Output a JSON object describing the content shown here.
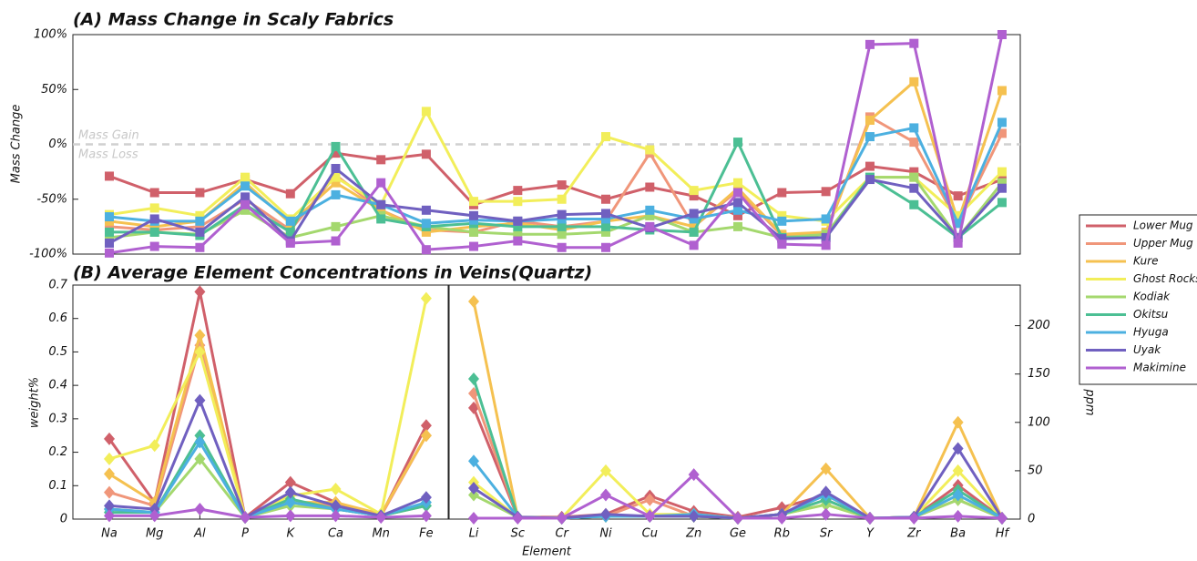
{
  "chart_data": [
    {
      "type": "line",
      "title": "(A) Mass Change in Scaly Fabrics",
      "ylabel": "Mass Change",
      "marker": "square",
      "annotations": [
        "Mass Gain",
        "Mass Loss"
      ],
      "ylim": [
        -100,
        100
      ],
      "yticks": [
        {
          "value": -100,
          "label": "-100%"
        },
        {
          "value": -50,
          "label": "-50%"
        },
        {
          "value": 0,
          "label": "0%"
        },
        {
          "value": 50,
          "label": "50%"
        },
        {
          "value": 100,
          "label": "100%"
        }
      ],
      "series": [
        {
          "name": "Lower Mug",
          "color": "#d0606a",
          "values": [
            -29,
            -44,
            -44,
            -32,
            -45,
            -8,
            -14,
            -9,
            -55,
            -42,
            -37,
            -50,
            -39,
            -47,
            -65,
            -44,
            -43,
            -20,
            -25,
            -47,
            -32
          ]
        },
        {
          "name": "Upper Mug",
          "color": "#f0967a",
          "values": [
            -75,
            -78,
            -75,
            -50,
            -78,
            -28,
            -60,
            -78,
            -80,
            -70,
            -75,
            -70,
            -8,
            -75,
            -42,
            -83,
            -82,
            25,
            2,
            -72,
            10
          ]
        },
        {
          "name": "Kure",
          "color": "#f5c150",
          "values": [
            -70,
            -75,
            -70,
            -35,
            -72,
            -35,
            -60,
            -80,
            -75,
            -72,
            -78,
            -70,
            -65,
            -75,
            -40,
            -82,
            -80,
            22,
            57,
            -70,
            49
          ]
        },
        {
          "name": "Ghost Rocks",
          "color": "#f2ee5a",
          "values": [
            -64,
            -58,
            -65,
            -30,
            -68,
            -30,
            -55,
            30,
            -52,
            -52,
            -50,
            7,
            -5,
            -42,
            -35,
            -65,
            -70,
            -30,
            -30,
            -65,
            -25
          ]
        },
        {
          "name": "Kodiak",
          "color": "#a4d86e",
          "values": [
            -85,
            -80,
            -82,
            -60,
            -85,
            -75,
            -65,
            -75,
            -80,
            -82,
            -82,
            -80,
            -65,
            -80,
            -75,
            -85,
            -82,
            -30,
            -30,
            -85,
            -35
          ]
        },
        {
          "name": "Okitsu",
          "color": "#4cbf94",
          "values": [
            -80,
            -80,
            -83,
            -55,
            -80,
            -2,
            -68,
            -75,
            -72,
            -75,
            -75,
            -75,
            -78,
            -80,
            2,
            -85,
            -85,
            -30,
            -55,
            -85,
            -53
          ]
        },
        {
          "name": "Hyuga",
          "color": "#4cb0e0",
          "values": [
            -66,
            -70,
            -70,
            -38,
            -70,
            -46,
            -55,
            -72,
            -69,
            -70,
            -68,
            -68,
            -60,
            -68,
            -60,
            -70,
            -68,
            7,
            15,
            -72,
            20
          ]
        },
        {
          "name": "Uyak",
          "color": "#7060c0",
          "values": [
            -90,
            -68,
            -80,
            -48,
            -88,
            -22,
            -55,
            -60,
            -65,
            -70,
            -64,
            -63,
            -76,
            -63,
            -53,
            -86,
            -85,
            -32,
            -40,
            -85,
            -40
          ]
        },
        {
          "name": "Makimine",
          "color": "#b060d0",
          "values": [
            -99,
            -93,
            -94,
            -55,
            -90,
            -88,
            -35,
            -96,
            -93,
            -88,
            -94,
            -94,
            -75,
            -92,
            -44,
            -91,
            -92,
            91,
            92,
            -90,
            100
          ]
        }
      ]
    },
    {
      "type": "line",
      "title": "(B) Average Element Concentrations in Veins(Quartz)",
      "ylabel": "weight%",
      "xlabel": "Element",
      "marker": "diamond",
      "categories": [
        "Na",
        "Mg",
        "Al",
        "P",
        "K",
        "Ca",
        "Mn",
        "Fe"
      ],
      "ylim": [
        0,
        0.7
      ],
      "yticks": [
        0,
        0.1,
        0.2,
        0.3,
        0.4,
        0.5,
        0.6,
        0.7
      ],
      "series": [
        {
          "values": [
            0.24,
            0.05,
            0.68,
            0.005,
            0.11,
            0.05,
            0.01,
            0.28
          ]
        },
        {
          "values": [
            0.08,
            0.04,
            0.52,
            0.005,
            0.05,
            0.04,
            0.01,
            0.25
          ]
        },
        {
          "values": [
            0.135,
            0.05,
            0.55,
            0.005,
            0.05,
            0.05,
            0.015,
            0.25
          ]
        },
        {
          "values": [
            0.18,
            0.22,
            0.5,
            0.005,
            0.07,
            0.09,
            0.015,
            0.66
          ]
        },
        {
          "values": [
            0.03,
            0.02,
            0.18,
            0.005,
            0.04,
            0.03,
            0.01,
            0.04
          ]
        },
        {
          "values": [
            0.02,
            0.02,
            0.25,
            0.005,
            0.06,
            0.03,
            0.01,
            0.04
          ]
        },
        {
          "values": [
            0.03,
            0.02,
            0.23,
            0.005,
            0.05,
            0.03,
            0.01,
            0.05
          ]
        },
        {
          "values": [
            0.04,
            0.03,
            0.355,
            0.005,
            0.08,
            0.04,
            0.01,
            0.065
          ]
        },
        {
          "values": [
            0.01,
            0.01,
            0.03,
            0.005,
            0.01,
            0.01,
            0.005,
            0.01
          ]
        }
      ]
    },
    {
      "type": "line",
      "ylabel": "ppm",
      "marker": "diamond",
      "categories": [
        "Li",
        "Sc",
        "Cr",
        "Ni",
        "Cu",
        "Zn",
        "Ge",
        "Rb",
        "Sr",
        "Y",
        "Zr",
        "Ba",
        "Hf"
      ],
      "ylim": [
        0,
        242
      ],
      "yticks": [
        0,
        50,
        100,
        150,
        200
      ],
      "series": [
        {
          "values": [
            115,
            2,
            2,
            5,
            24,
            8,
            2,
            12,
            25,
            1,
            2,
            35,
            1
          ]
        },
        {
          "values": [
            130,
            2,
            1,
            3,
            20,
            3,
            1,
            5,
            20,
            1,
            2,
            20,
            1
          ]
        },
        {
          "values": [
            225,
            2,
            1,
            3,
            3,
            3,
            1,
            5,
            52,
            1,
            2,
            100,
            1
          ]
        },
        {
          "values": [
            38,
            2,
            1,
            50,
            5,
            5,
            1,
            5,
            15,
            1,
            2,
            50,
            1
          ]
        },
        {
          "values": [
            25,
            2,
            1,
            3,
            3,
            3,
            1,
            5,
            15,
            1,
            2,
            20,
            1
          ]
        },
        {
          "values": [
            145,
            2,
            1,
            3,
            3,
            3,
            1,
            5,
            20,
            1,
            2,
            30,
            1
          ]
        },
        {
          "values": [
            60,
            2,
            1,
            3,
            3,
            5,
            1,
            5,
            25,
            1,
            2,
            25,
            1
          ]
        },
        {
          "values": [
            32,
            2,
            1,
            5,
            3,
            3,
            1,
            5,
            28,
            1,
            2,
            73,
            1
          ]
        },
        {
          "values": [
            1,
            1,
            1,
            25,
            3,
            46,
            1,
            1,
            5,
            1,
            1,
            3,
            1
          ]
        }
      ]
    }
  ]
}
